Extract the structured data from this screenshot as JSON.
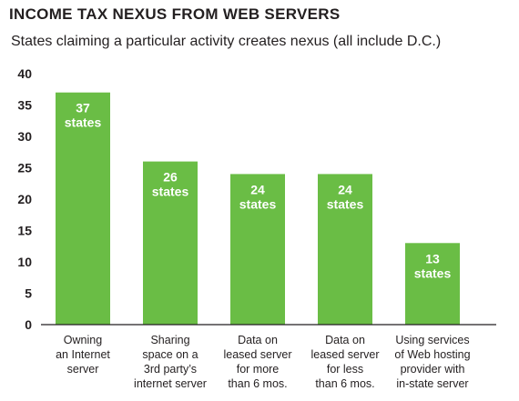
{
  "chart_data": {
    "type": "bar",
    "title": "INCOME TAX NEXUS FROM WEB SERVERS",
    "subtitle": "States claiming a particular activity creates nexus (all include D.C.)",
    "categories": [
      [
        "Owning",
        "an Internet",
        "server"
      ],
      [
        "Sharing",
        "space on a",
        "3rd party’s",
        "internet server"
      ],
      [
        "Data on",
        "leased  server",
        "for more",
        "than 6 mos."
      ],
      [
        "Data on",
        "leased  server",
        "for less",
        "than 6 mos."
      ],
      [
        "Using services",
        "of Web hosting",
        "provider with",
        "in-state server"
      ]
    ],
    "values": [
      37,
      26,
      24,
      24,
      13
    ],
    "bar_labels": [
      [
        "37",
        "states"
      ],
      [
        "26",
        "states"
      ],
      [
        "24",
        "states"
      ],
      [
        "24",
        "states"
      ],
      [
        "13",
        "states"
      ]
    ],
    "yticks": [
      "0",
      "5",
      "10",
      "15",
      "20",
      "25",
      "30",
      "35",
      "40"
    ],
    "ylim": [
      0,
      40
    ],
    "grid": false,
    "colors": {
      "bar": "#6abd45",
      "text": "#231f20",
      "bar_text": "#ffffff"
    }
  }
}
